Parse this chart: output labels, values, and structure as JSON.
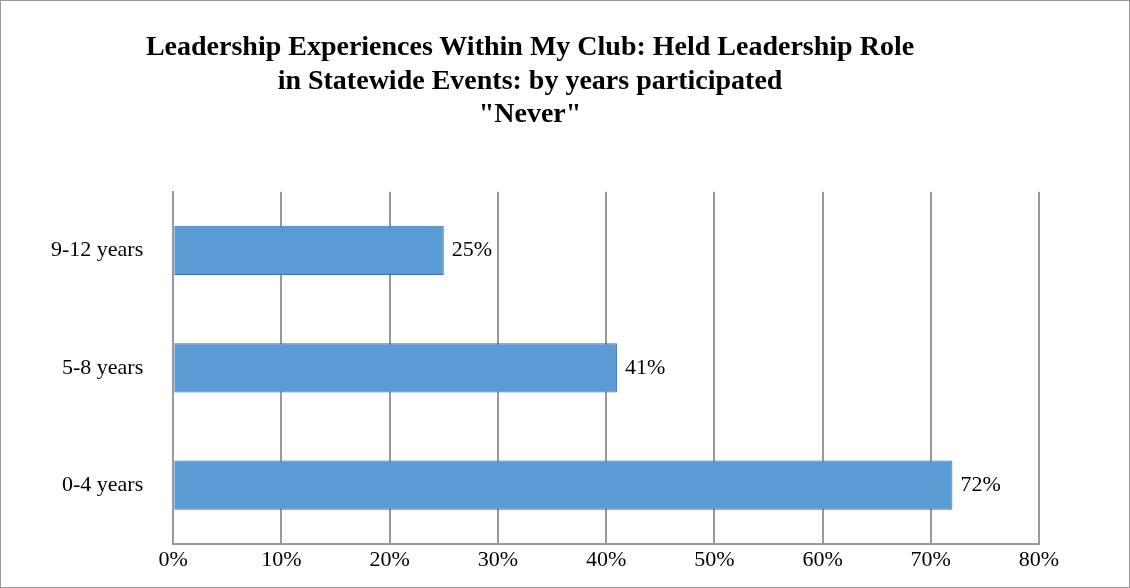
{
  "chart_data": {
    "type": "bar",
    "orientation": "horizontal",
    "title": "Leadership Experiences Within My Club: Held Leadership Role\nin Statewide Events: by years participated\n\"Never\"",
    "categories": [
      "9-12 years",
      "5-8 years",
      "0-4 years"
    ],
    "values": [
      25,
      41,
      72
    ],
    "color": "#5b9bd5",
    "value_labels": [
      "25%",
      "41%",
      "72%"
    ],
    "xlim": [
      0,
      80
    ],
    "xticks": [
      {
        "value": 0,
        "label": "0%"
      },
      {
        "value": 10,
        "label": "10%"
      },
      {
        "value": 20,
        "label": "20%"
      },
      {
        "value": 30,
        "label": "30%"
      },
      {
        "value": 40,
        "label": "40%"
      },
      {
        "value": 50,
        "label": "50%"
      },
      {
        "value": 60,
        "label": "60%"
      },
      {
        "value": 70,
        "label": "70%"
      },
      {
        "value": 80,
        "label": "80%"
      }
    ],
    "grid": "x",
    "legend": false
  }
}
